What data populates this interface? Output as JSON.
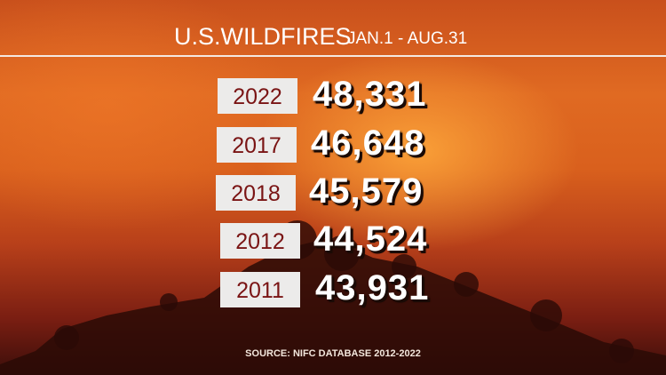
{
  "header": {
    "title": "U.S.WILDFIRES",
    "date_range": "JAN.1 - AUG.31"
  },
  "rows": [
    {
      "year": "2022",
      "count": "48,331"
    },
    {
      "year": "2017",
      "count": "46,648"
    },
    {
      "year": "2018",
      "count": "45,579"
    },
    {
      "year": "2012",
      "count": "44,524"
    },
    {
      "year": "2011",
      "count": "43,931"
    }
  ],
  "source": "SOURCE: NIFC DATABASE 2012-2022",
  "colors": {
    "year_box": "#ecebea",
    "year_text": "#7a1414",
    "value_text": "#ffffff"
  }
}
